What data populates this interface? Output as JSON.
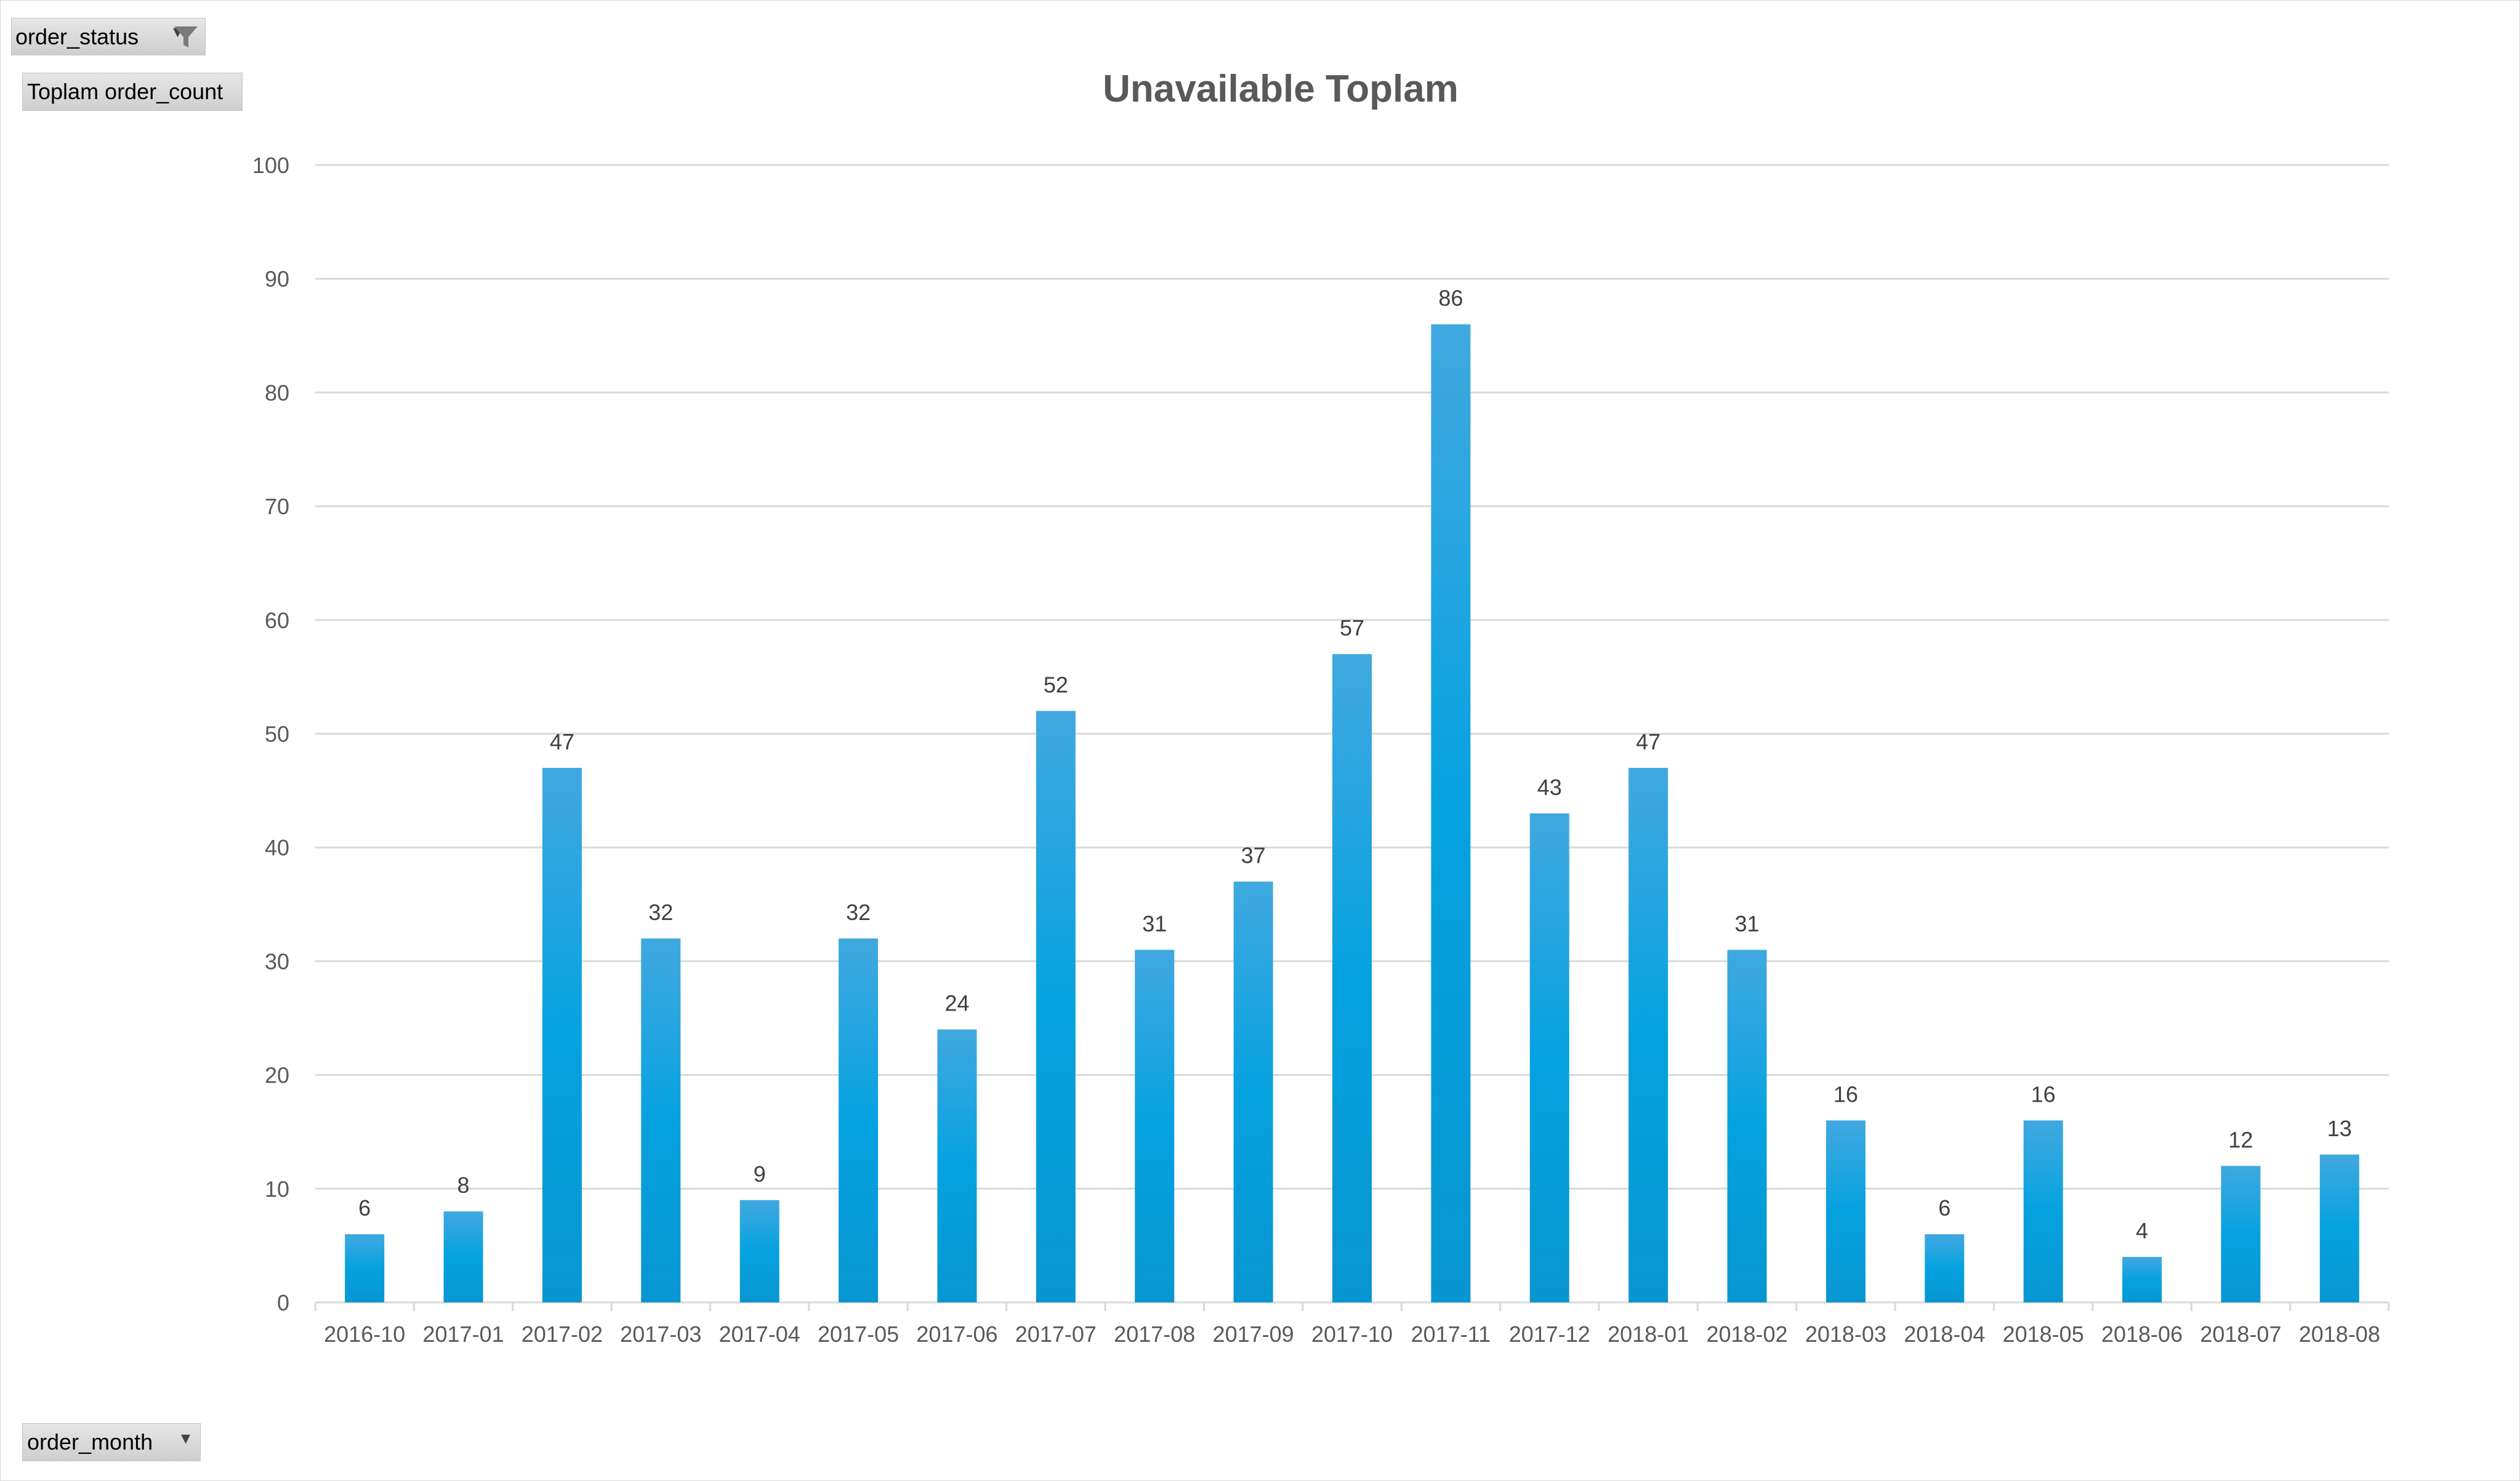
{
  "pivot": {
    "filter_field": "order_status",
    "value_field": "Toplam order_count",
    "axis_field": "order_month"
  },
  "icons": {
    "filter": "funnel-icon",
    "dropdown": "dropdown-arrow-icon"
  },
  "colors": {
    "bar_top": "#41a8e0",
    "bar_mid": "#05a2e0",
    "bar_bottom": "#0896d1",
    "gridline": "#d9d9d9",
    "axis_text": "#595959",
    "title": "#595959",
    "data_label": "#404040"
  },
  "chart_data": {
    "type": "bar",
    "title": "Unavailable Toplam",
    "xlabel": "",
    "ylabel": "",
    "ylim": [
      0,
      100
    ],
    "yticks": [
      0,
      10,
      20,
      30,
      40,
      50,
      60,
      70,
      80,
      90,
      100
    ],
    "grid": true,
    "legend": "none",
    "categories": [
      "2016-10",
      "2017-01",
      "2017-02",
      "2017-03",
      "2017-04",
      "2017-05",
      "2017-06",
      "2017-07",
      "2017-08",
      "2017-09",
      "2017-10",
      "2017-11",
      "2017-12",
      "2018-01",
      "2018-02",
      "2018-03",
      "2018-04",
      "2018-05",
      "2018-06",
      "2018-07",
      "2018-08"
    ],
    "values": [
      6,
      8,
      47,
      32,
      9,
      32,
      24,
      52,
      31,
      37,
      57,
      86,
      43,
      47,
      31,
      16,
      6,
      16,
      4,
      12,
      13
    ]
  }
}
